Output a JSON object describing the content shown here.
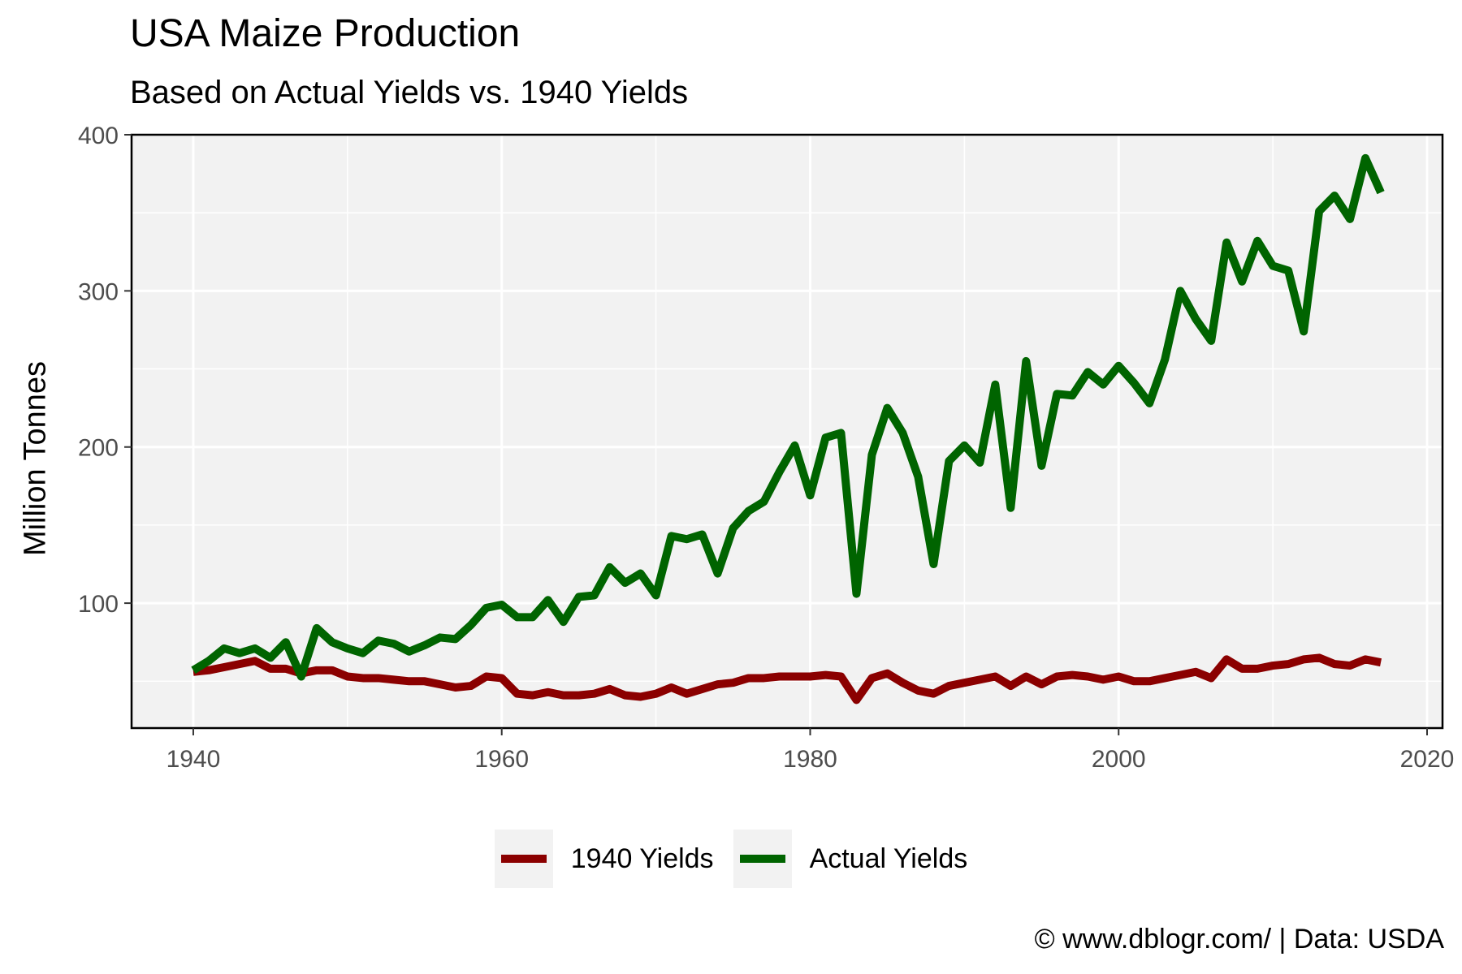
{
  "title": "USA Maize Production",
  "subtitle": "Based on Actual Yields vs. 1940 Yields",
  "caption": "© www.dblogr.com/  |  Data: USDA",
  "chart_data": {
    "type": "line",
    "ylabel": "Million Tonnes",
    "xlabel": "",
    "xlim": [
      1936,
      2021
    ],
    "ylim": [
      20,
      400
    ],
    "x_ticks": [
      1940,
      1960,
      1980,
      2000,
      2020
    ],
    "y_ticks": [
      100,
      200,
      300,
      400
    ],
    "grid": true,
    "legend_position": "bottom",
    "x": [
      1940,
      1941,
      1942,
      1943,
      1944,
      1945,
      1946,
      1947,
      1948,
      1949,
      1950,
      1951,
      1952,
      1953,
      1954,
      1955,
      1956,
      1957,
      1958,
      1959,
      1960,
      1961,
      1962,
      1963,
      1964,
      1965,
      1966,
      1967,
      1968,
      1969,
      1970,
      1971,
      1972,
      1973,
      1974,
      1975,
      1976,
      1977,
      1978,
      1979,
      1980,
      1981,
      1982,
      1983,
      1984,
      1985,
      1986,
      1987,
      1988,
      1989,
      1990,
      1991,
      1992,
      1993,
      1994,
      1995,
      1996,
      1997,
      1998,
      1999,
      2000,
      2001,
      2002,
      2003,
      2004,
      2005,
      2006,
      2007,
      2008,
      2009,
      2010,
      2011,
      2012,
      2013,
      2014,
      2015,
      2016,
      2017
    ],
    "series": [
      {
        "name": "1940 Yields",
        "color": "#8b0000",
        "values": [
          56,
          57,
          59,
          61,
          63,
          58,
          58,
          55,
          57,
          57,
          53,
          52,
          52,
          51,
          50,
          50,
          48,
          46,
          47,
          53,
          52,
          42,
          41,
          43,
          41,
          41,
          42,
          45,
          41,
          40,
          42,
          46,
          42,
          45,
          48,
          49,
          52,
          52,
          53,
          53,
          53,
          54,
          53,
          38,
          52,
          55,
          49,
          44,
          42,
          47,
          49,
          51,
          53,
          47,
          53,
          48,
          53,
          54,
          53,
          51,
          53,
          50,
          50,
          52,
          54,
          56,
          52,
          64,
          58,
          58,
          60,
          61,
          64,
          65,
          61,
          60,
          64,
          62
        ]
      },
      {
        "name": "Actual Yields",
        "color": "#006400",
        "values": [
          57,
          63,
          71,
          68,
          71,
          65,
          75,
          53,
          84,
          75,
          71,
          68,
          76,
          74,
          69,
          73,
          78,
          77,
          86,
          97,
          99,
          91,
          91,
          102,
          88,
          104,
          105,
          123,
          113,
          119,
          105,
          143,
          141,
          144,
          119,
          148,
          159,
          165,
          184,
          201,
          169,
          206,
          209,
          106,
          195,
          225,
          209,
          181,
          125,
          191,
          201,
          190,
          240,
          161,
          255,
          188,
          234,
          233,
          248,
          240,
          252,
          241,
          228,
          256,
          300,
          282,
          268,
          331,
          306,
          332,
          316,
          313,
          274,
          351,
          361,
          346,
          385,
          363
        ]
      }
    ]
  }
}
